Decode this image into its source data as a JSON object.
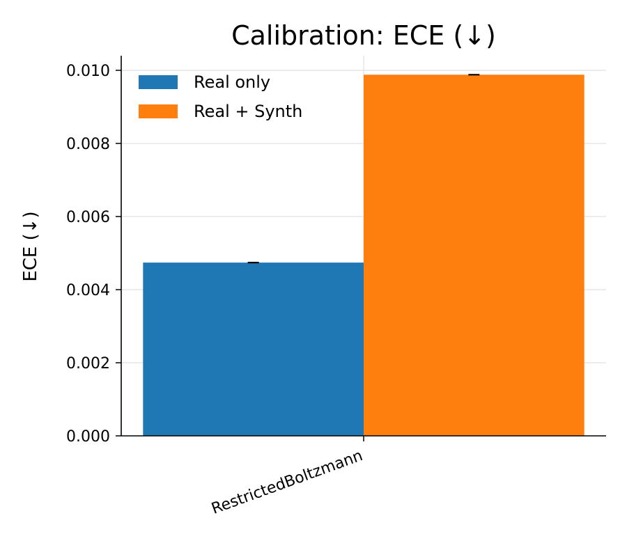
{
  "chart_data": {
    "type": "bar",
    "title": "Calibration: ECE (↓)",
    "xlabel": "",
    "ylabel": "ECE (↓)",
    "categories": [
      "RestrictedBoltzmann"
    ],
    "series": [
      {
        "name": "Real only",
        "values": [
          0.00474
        ],
        "error": [
          1e-05
        ],
        "color": "#1f77b4"
      },
      {
        "name": "Real + Synth",
        "values": [
          0.00988
        ],
        "error": [
          1e-05
        ],
        "color": "#ff7f0e"
      }
    ],
    "ylim": [
      0,
      0.0104
    ],
    "yticks": [
      "0.000",
      "0.002",
      "0.004",
      "0.006",
      "0.008",
      "0.010"
    ],
    "ytick_values": [
      0,
      0.002,
      0.004,
      0.006,
      0.008,
      0.01
    ],
    "grid": true,
    "legend": "top-left"
  }
}
